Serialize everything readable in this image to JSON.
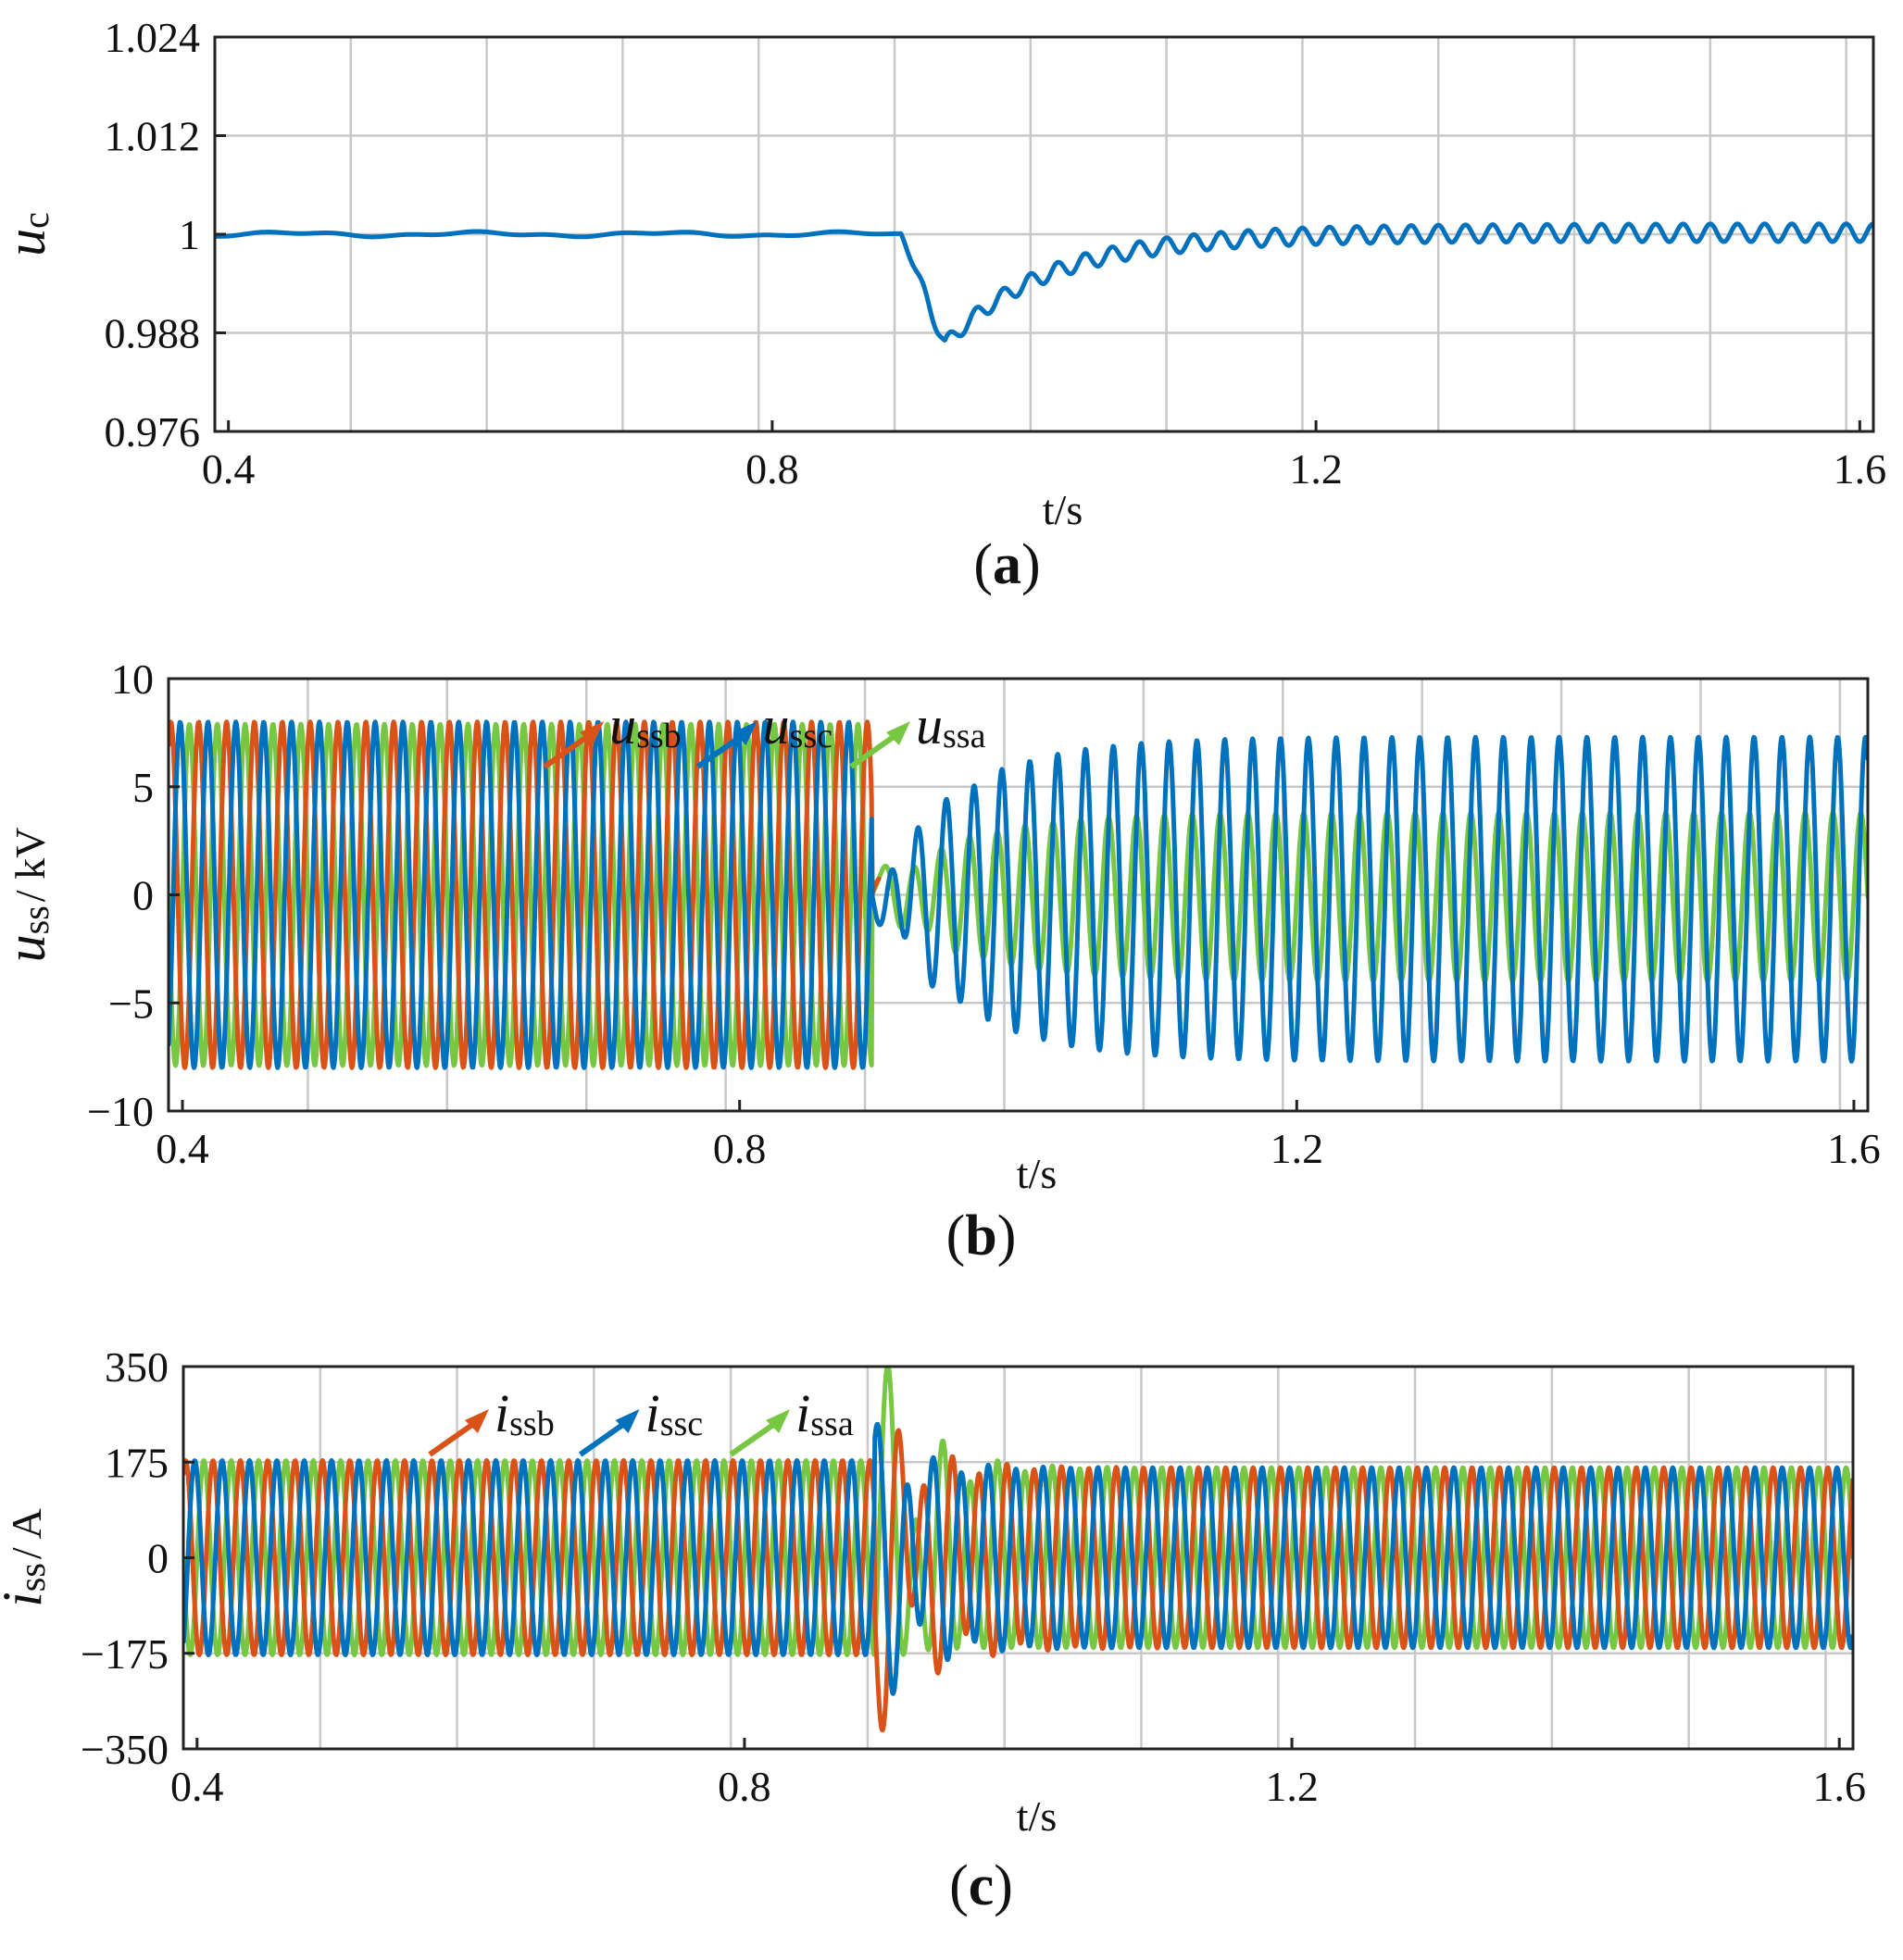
{
  "chart_data": [
    {
      "panel": "a",
      "type": "line",
      "panel_label": {
        "open": "(",
        "letter": "a",
        "close": ")"
      },
      "xlabel": "t/s",
      "ylabel": {
        "var": "u",
        "sub": "c",
        "unit": ""
      },
      "xlim": [
        0.39,
        1.61
      ],
      "ylim": [
        0.976,
        1.024
      ],
      "xticks": [
        0.4,
        0.8,
        1.2,
        1.6
      ],
      "xtick_labels": [
        "0.4",
        "0.8",
        "1.2",
        "1.6"
      ],
      "yticks": [
        0.976,
        0.988,
        1,
        1.012,
        1.024
      ],
      "ytick_labels": [
        "0.976",
        "0.988",
        "1",
        "1.012",
        "1.024"
      ],
      "xgrid": [
        0.49,
        0.59,
        0.69,
        0.79,
        0.89,
        0.99,
        1.09,
        1.19,
        1.29,
        1.39,
        1.49,
        1.59
      ],
      "ygrid": [
        0.988,
        1,
        1.012
      ],
      "legend": [],
      "series": [
        {
          "name": "u_c",
          "color": "#0072BD",
          "model": "vdc",
          "params": {
            "before": 1.0,
            "event_t": 0.895,
            "dip_depth": 0.0135,
            "dip_time": 0.032,
            "recover_tau": 0.075,
            "ripple_freq": 50,
            "ripple_amp_start": 0.0009,
            "ripple_amp_end": 0.0011,
            "ripple_growth_tau": 0.25,
            "final_offset": 0.0002
          }
        }
      ]
    },
    {
      "panel": "b",
      "type": "line",
      "panel_label": {
        "open": "(",
        "letter": "b",
        "close": ")"
      },
      "xlabel": "t/s",
      "ylabel": {
        "var": "u",
        "sub": "ss",
        "unit": "/ kV"
      },
      "xlim": [
        0.39,
        1.61
      ],
      "ylim": [
        -10,
        10
      ],
      "xticks": [
        0.4,
        0.8,
        1.2,
        1.6
      ],
      "xtick_labels": [
        "0.4",
        "0.8",
        "1.2",
        "1.6"
      ],
      "yticks": [
        -10,
        -5,
        0,
        5,
        10
      ],
      "ytick_labels": [
        "−10",
        "−5",
        "0",
        "5",
        "10"
      ],
      "xgrid": [
        0.49,
        0.59,
        0.69,
        0.79,
        0.89,
        0.99,
        1.09,
        1.19,
        1.29,
        1.39,
        1.49,
        1.59
      ],
      "ygrid": [
        -5,
        0,
        5
      ],
      "legend": [
        {
          "var": "u",
          "sub": "ssb",
          "color": "#D95319",
          "t": 0.66
        },
        {
          "var": "u",
          "sub": "ssc",
          "color": "#0072BD",
          "t": 0.77
        },
        {
          "var": "u",
          "sub": "ssa",
          "color": "#77C742",
          "t": 0.88
        }
      ],
      "series": [
        {
          "name": "u_ssa",
          "color": "#77C742",
          "model": "voltage",
          "params": {
            "amp": 7.9,
            "phase": 0,
            "freq": 50,
            "event_t": 0.895,
            "after_amp": 3.9,
            "after_offset": -0.1,
            "after_phase": 0
          }
        },
        {
          "name": "u_ssb",
          "color": "#D95319",
          "model": "voltage",
          "params": {
            "amp": 8.0,
            "phase": -120,
            "freq": 50,
            "event_t": 0.895,
            "after_amp": 0,
            "after_offset": 0,
            "after_phase": 0
          }
        },
        {
          "name": "u_ssc",
          "color": "#0072BD",
          "model": "voltage",
          "params": {
            "amp": 8.0,
            "phase": 120,
            "freq": 50,
            "event_t": 0.895,
            "after_amp": 7.5,
            "after_offset": -0.2,
            "after_phase": 180
          }
        }
      ]
    },
    {
      "panel": "c",
      "type": "line",
      "panel_label": {
        "open": "(",
        "letter": "c",
        "close": ")"
      },
      "xlabel": "t/s",
      "ylabel": {
        "var": "i",
        "sub": "ss",
        "unit": "/ A"
      },
      "xlim": [
        0.39,
        1.61
      ],
      "ylim": [
        -350,
        350
      ],
      "xticks": [
        0.4,
        0.8,
        1.2,
        1.6
      ],
      "xtick_labels": [
        "0.4",
        "0.8",
        "1.2",
        "1.6"
      ],
      "yticks": [
        -350,
        -175,
        0,
        175,
        350
      ],
      "ytick_labels": [
        "−350",
        "−175",
        "0",
        "175",
        "350"
      ],
      "xgrid": [
        0.49,
        0.59,
        0.69,
        0.79,
        0.89,
        0.99,
        1.09,
        1.19,
        1.29,
        1.39,
        1.49,
        1.59
      ],
      "ygrid": [
        -175,
        175
      ],
      "legend": [
        {
          "var": "i",
          "sub": "ssb",
          "color": "#D95319",
          "t": 0.57
        },
        {
          "var": "i",
          "sub": "ssc",
          "color": "#0072BD",
          "t": 0.68
        },
        {
          "var": "i",
          "sub": "ssa",
          "color": "#77C742",
          "t": 0.79
        }
      ],
      "series": [
        {
          "name": "i_ssa",
          "color": "#77C742",
          "model": "current",
          "params": {
            "amp": 178,
            "phase": 0,
            "freq": 50,
            "event_t": 0.895,
            "after_amp": 165,
            "transient_amp": 260,
            "transient_tau": 0.03
          }
        },
        {
          "name": "i_ssb",
          "color": "#D95319",
          "model": "current",
          "params": {
            "amp": 178,
            "phase": -120,
            "freq": 50,
            "event_t": 0.895,
            "after_amp": 165,
            "transient_amp": 200,
            "transient_tau": 0.035
          }
        },
        {
          "name": "i_ssc",
          "color": "#0072BD",
          "model": "current",
          "params": {
            "amp": 178,
            "phase": 120,
            "freq": 50,
            "event_t": 0.895,
            "after_amp": 165,
            "transient_amp": 150,
            "transient_tau": 0.03
          }
        }
      ]
    }
  ]
}
